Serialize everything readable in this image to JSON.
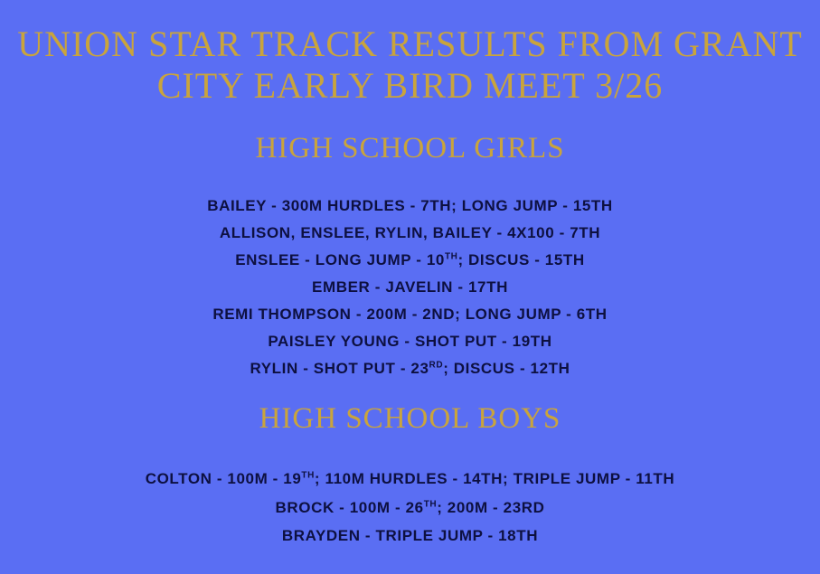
{
  "title": "UNION STAR TRACK RESULTS FROM GRANT CITY EARLY BIRD MEET 3/26",
  "sections": [
    {
      "heading": "HIGH SCHOOL GIRLS",
      "lines": [
        [
          "BAILEY - 300M HURDLES - 7TH; LONG JUMP - 15TH"
        ],
        [
          "ALLISON, ENSLEE, RYLIN, BAILEY - 4X100 - 7TH"
        ],
        [
          "ENSLEE - LONG JUMP - 10",
          "TH",
          "; DISCUS - 15TH"
        ],
        [
          "EMBER - JAVELIN - 17TH"
        ],
        [
          "REMI THOMPSON - 200M - 2ND; LONG JUMP - 6TH"
        ],
        [
          "PAISLEY YOUNG - SHOT PUT - 19TH"
        ],
        [
          "RYLIN - SHOT PUT - 23",
          "RD",
          "; DISCUS - 12TH"
        ]
      ]
    },
    {
      "heading": "HIGH SCHOOL BOYS",
      "lines": [
        [
          "COLTON - 100M - 19",
          "TH",
          "; 110M HURDLES - 14TH; TRIPLE JUMP - 11TH"
        ],
        [
          "BROCK - 100M - 26",
          "TH",
          "; 200M - 23RD"
        ],
        [
          "BRAYDEN - TRIPLE JUMP - 18TH"
        ]
      ]
    }
  ]
}
